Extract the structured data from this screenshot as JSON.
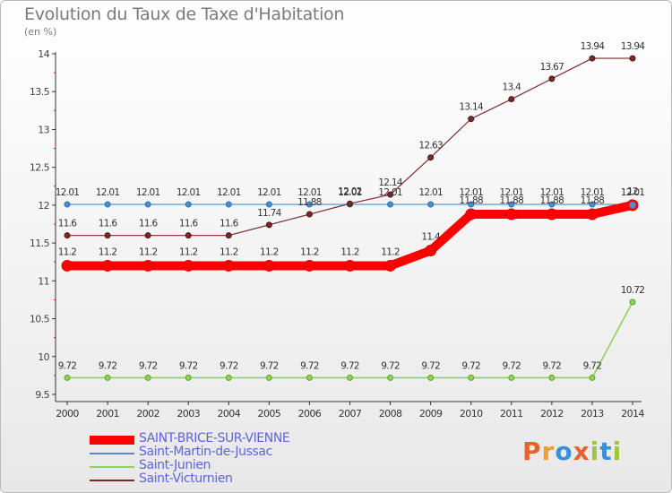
{
  "header": {
    "title": "Evolution du Taux de Taxe d'Habitation",
    "subtitle": "(en %)"
  },
  "brand": {
    "letters": [
      "P",
      "r",
      "o",
      "x",
      "i",
      "t",
      "i"
    ],
    "colors": [
      "#e8622c",
      "#f0a02a",
      "#3a8fd9",
      "#e8622c",
      "#9ac83a",
      "#3a8fd9",
      "#9ac83a"
    ]
  },
  "chart_data": {
    "type": "line",
    "title": "Evolution du Taux de Taxe d'Habitation",
    "ylabel": "(en %)",
    "xlabel": "",
    "x": [
      "2000",
      "2001",
      "2002",
      "2003",
      "2004",
      "2005",
      "2006",
      "2007",
      "2008",
      "2009",
      "2010",
      "2011",
      "2012",
      "2013",
      "2014"
    ],
    "ylim": [
      9.5,
      14
    ],
    "yticks": [
      "9.5",
      "10",
      "10.5",
      "11",
      "11.5",
      "12",
      "12.5",
      "13",
      "13.5",
      "14"
    ],
    "grid": false,
    "legend_position": "bottom-left",
    "series": [
      {
        "name": "SAINT-BRICE-SUR-VIENNE",
        "color": "#ff0000",
        "values": [
          11.2,
          11.2,
          11.2,
          11.2,
          11.2,
          11.2,
          11.2,
          11.2,
          11.2,
          11.4,
          11.88,
          11.88,
          11.88,
          11.88,
          12
        ],
        "labels": [
          "11.2",
          "11.2",
          "11.2",
          "11.2",
          "11.2",
          "11.2",
          "11.2",
          "11.2",
          "11.2",
          "11.4",
          "11.88",
          "11.88",
          "11.88",
          "11.88",
          "12"
        ]
      },
      {
        "name": "Saint-Martin-de-Jussac",
        "color": "#4a8fd0",
        "values": [
          12.01,
          12.01,
          12.01,
          12.01,
          12.01,
          12.01,
          12.01,
          12.01,
          12.01,
          12.01,
          12.01,
          12.01,
          12.01,
          12.01,
          12.01
        ],
        "labels": [
          "12.01",
          "12.01",
          "12.01",
          "12.01",
          "12.01",
          "12.01",
          "12.01",
          "12.01",
          "12.01",
          "12.01",
          "12.01",
          "12.01",
          "12.01",
          "12.01",
          "12.01"
        ]
      },
      {
        "name": "Saint-Junien",
        "color": "#8fd44e",
        "values": [
          9.72,
          9.72,
          9.72,
          9.72,
          9.72,
          9.72,
          9.72,
          9.72,
          9.72,
          9.72,
          9.72,
          9.72,
          9.72,
          9.72,
          10.72
        ],
        "labels": [
          "9.72",
          "9.72",
          "9.72",
          "9.72",
          "9.72",
          "9.72",
          "9.72",
          "9.72",
          "9.72",
          "9.72",
          "9.72",
          "9.72",
          "9.72",
          "9.72",
          "10.72"
        ]
      },
      {
        "name": "Saint-Victurnien",
        "color": "#7a2a2a",
        "values": [
          11.6,
          11.6,
          11.6,
          11.6,
          11.6,
          11.74,
          11.88,
          12.02,
          12.14,
          12.63,
          13.14,
          13.4,
          13.67,
          13.94,
          13.94
        ],
        "labels": [
          "11.6",
          "11.6",
          "11.6",
          "11.6",
          "11.6",
          "11.74",
          "11.88",
          "12.02",
          "12.14",
          "12.63",
          "13.14",
          "13.4",
          "13.67",
          "13.94",
          "13.94"
        ]
      }
    ]
  }
}
